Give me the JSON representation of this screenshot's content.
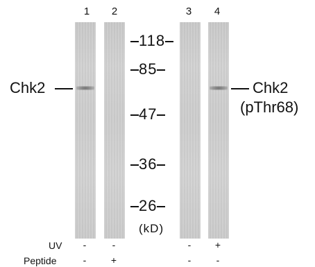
{
  "lanes": [
    "1",
    "2",
    "3",
    "4"
  ],
  "markers": [
    "118",
    "85",
    "47",
    "36",
    "26"
  ],
  "unit": "(kD)",
  "left_label": "Chk2",
  "right_label_line1": "Chk2",
  "right_label_line2": "(pThr68)",
  "conditions": {
    "uv_label": "UV",
    "peptide_label": "Peptide",
    "uv": [
      "-",
      "-",
      "-",
      "+"
    ],
    "peptide": [
      "-",
      "+",
      "-",
      "-"
    ]
  }
}
